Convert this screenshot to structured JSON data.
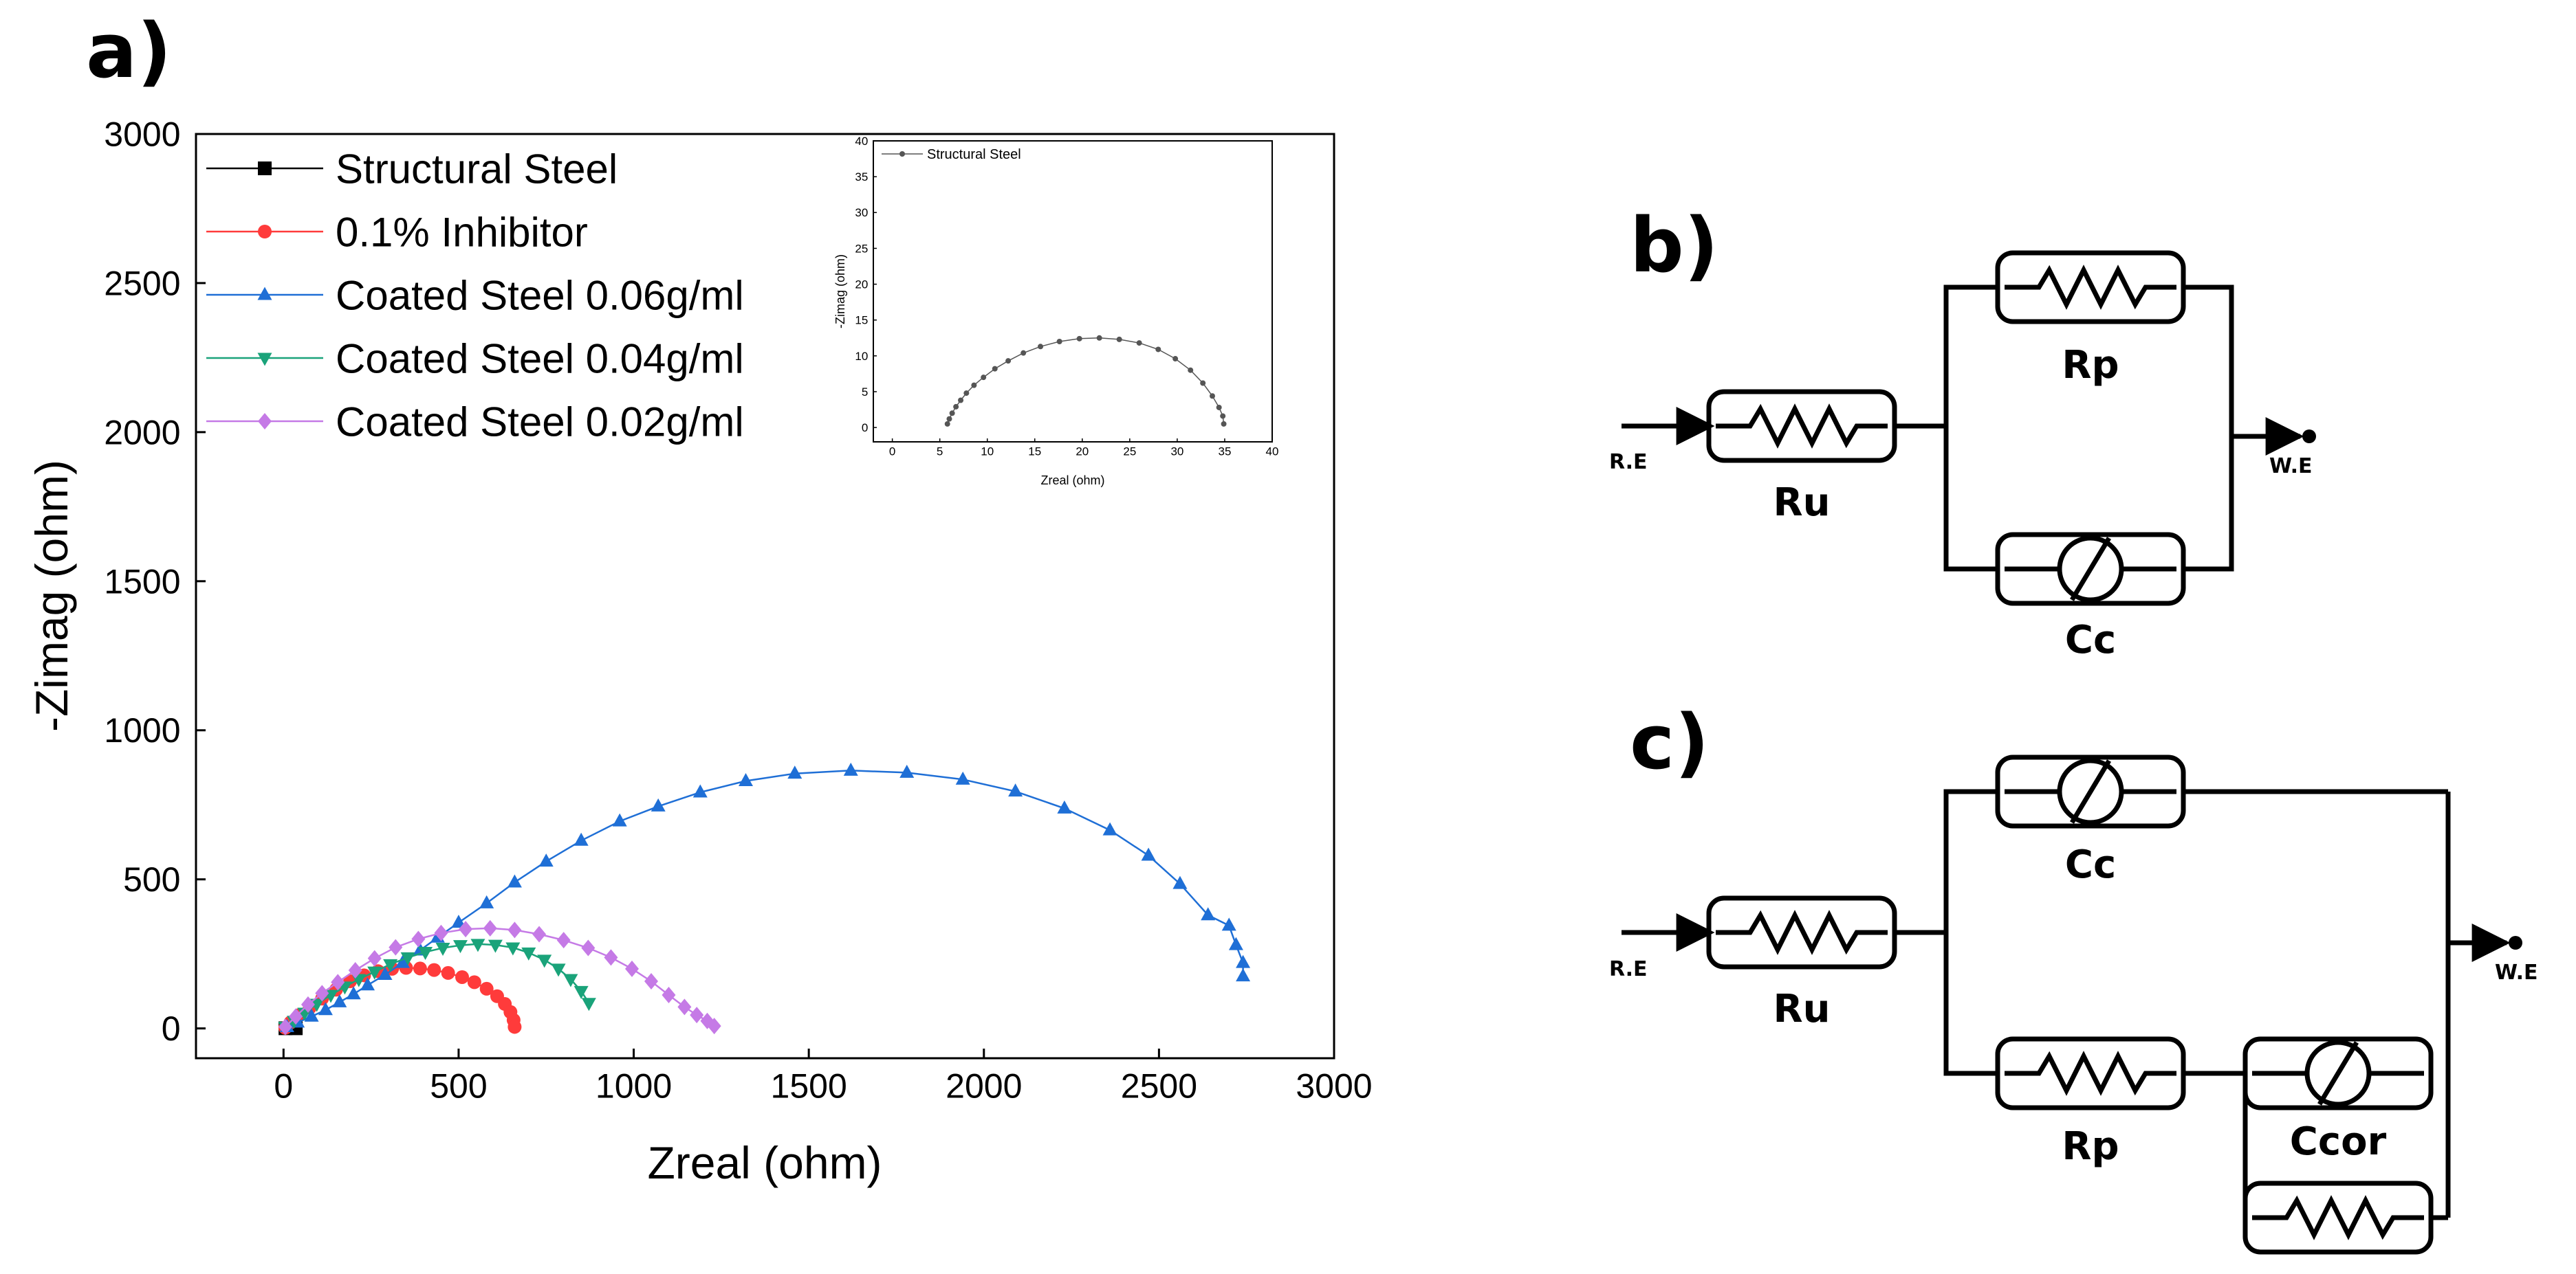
{
  "panels": {
    "a": "a)",
    "b": "b)",
    "c": "c)"
  },
  "chart_data": [
    {
      "type": "scatter",
      "title": "",
      "xlabel": "Zreal (ohm)",
      "ylabel": "-Zimag (ohm)",
      "xlim": [
        -250,
        3000
      ],
      "ylim": [
        -100,
        3000
      ],
      "xticks": [
        0,
        500,
        1000,
        1500,
        2000,
        2500,
        3000
      ],
      "yticks": [
        0,
        500,
        1000,
        1500,
        2000,
        2500,
        3000
      ],
      "legend_position": "top-left",
      "series": [
        {
          "name": "Structural Steel",
          "color": "#000000",
          "marker": "square",
          "points": [
            [
              5.5,
              0.5
            ],
            [
              34.9,
              0.5
            ]
          ]
        },
        {
          "name": "0.1% Inhibitor",
          "color": "#ff3b3b",
          "marker": "circle",
          "points": [
            [
              5,
              2
            ],
            [
              20,
              20
            ],
            [
              45,
              45
            ],
            [
              75,
              70
            ],
            [
              110,
              100
            ],
            [
              150,
              130
            ],
            [
              190,
              158
            ],
            [
              230,
              178
            ],
            [
              270,
              192
            ],
            [
              310,
              200
            ],
            [
              350,
              203
            ],
            [
              390,
              201
            ],
            [
              430,
              196
            ],
            [
              470,
              186
            ],
            [
              510,
              172
            ],
            [
              545,
              155
            ],
            [
              580,
              133
            ],
            [
              610,
              108
            ],
            [
              632,
              82
            ],
            [
              648,
              55
            ],
            [
              657,
              28
            ],
            [
              660,
              5
            ]
          ]
        },
        {
          "name": "Coated Steel 0.06g/ml",
          "color": "#1f6fd6",
          "marker": "triangle-up",
          "points": [
            [
              10,
              5
            ],
            [
              40,
              20
            ],
            [
              80,
              40
            ],
            [
              120,
              62
            ],
            [
              160,
              88
            ],
            [
              200,
              115
            ],
            [
              240,
              145
            ],
            [
              290,
              180
            ],
            [
              340,
              220
            ],
            [
              390,
              262
            ],
            [
              440,
              305
            ],
            [
              500,
              355
            ],
            [
              580,
              420
            ],
            [
              660,
              490
            ],
            [
              750,
              560
            ],
            [
              850,
              630
            ],
            [
              960,
              695
            ],
            [
              1070,
              745
            ],
            [
              1190,
              792
            ],
            [
              1320,
              830
            ],
            [
              1460,
              855
            ],
            [
              1620,
              865
            ],
            [
              1780,
              858
            ],
            [
              1940,
              835
            ],
            [
              2090,
              795
            ],
            [
              2230,
              738
            ],
            [
              2360,
              665
            ],
            [
              2470,
              580
            ],
            [
              2560,
              485
            ],
            [
              2640,
              380
            ],
            [
              2700,
              345
            ],
            [
              2720,
              280
            ],
            [
              2740,
              220
            ],
            [
              2740,
              175
            ]
          ]
        },
        {
          "name": "Coated Steel 0.04g/ml",
          "color": "#1aa37a",
          "marker": "triangle-down",
          "points": [
            [
              5,
              5
            ],
            [
              30,
              25
            ],
            [
              60,
              52
            ],
            [
              95,
              82
            ],
            [
              135,
              112
            ],
            [
              175,
              140
            ],
            [
              215,
              165
            ],
            [
              260,
              190
            ],
            [
              305,
              215
            ],
            [
              355,
              238
            ],
            [
              405,
              256
            ],
            [
              455,
              270
            ],
            [
              505,
              279
            ],
            [
              555,
              283
            ],
            [
              605,
              280
            ],
            [
              655,
              271
            ],
            [
              700,
              254
            ],
            [
              745,
              230
            ],
            [
              785,
              200
            ],
            [
              820,
              165
            ],
            [
              850,
              125
            ],
            [
              872,
              85
            ]
          ]
        },
        {
          "name": "Coated Steel 0.02g/ml",
          "color": "#c57ae6",
          "marker": "diamond",
          "points": [
            [
              5,
              5
            ],
            [
              35,
              40
            ],
            [
              70,
              80
            ],
            [
              110,
              118
            ],
            [
              155,
              155
            ],
            [
              205,
              195
            ],
            [
              260,
              235
            ],
            [
              320,
              272
            ],
            [
              385,
              300
            ],
            [
              450,
              320
            ],
            [
              520,
              333
            ],
            [
              590,
              336
            ],
            [
              660,
              330
            ],
            [
              730,
              316
            ],
            [
              800,
              296
            ],
            [
              870,
              270
            ],
            [
              935,
              238
            ],
            [
              995,
              200
            ],
            [
              1050,
              158
            ],
            [
              1100,
              112
            ],
            [
              1145,
              72
            ],
            [
              1180,
              45
            ],
            [
              1210,
              25
            ],
            [
              1230,
              8
            ]
          ]
        }
      ],
      "legend": [
        "Structural Steel",
        "0.1% Inhibitor",
        "Coated Steel 0.06g/ml",
        "Coated Steel 0.04g/ml",
        "Coated Steel 0.02g/ml"
      ]
    },
    {
      "type": "line",
      "title": "",
      "xlabel": "Zreal (ohm)",
      "ylabel": "-Zimag (ohm)",
      "xlim": [
        -2,
        40
      ],
      "ylim": [
        -2,
        40
      ],
      "xticks": [
        0,
        5,
        10,
        15,
        20,
        25,
        30,
        35,
        40
      ],
      "yticks": [
        0,
        5,
        10,
        15,
        20,
        25,
        30,
        35,
        40
      ],
      "legend_position": "top-left",
      "series": [
        {
          "name": "Structural Steel",
          "color": "#555555",
          "marker": "circle",
          "points": [
            [
              5.8,
              0.5
            ],
            [
              6.0,
              1.2
            ],
            [
              6.3,
              2.0
            ],
            [
              6.7,
              2.9
            ],
            [
              7.2,
              3.8
            ],
            [
              7.8,
              4.8
            ],
            [
              8.6,
              5.9
            ],
            [
              9.6,
              7.0
            ],
            [
              10.8,
              8.2
            ],
            [
              12.2,
              9.3
            ],
            [
              13.8,
              10.4
            ],
            [
              15.6,
              11.3
            ],
            [
              17.6,
              12.0
            ],
            [
              19.7,
              12.4
            ],
            [
              21.8,
              12.5
            ],
            [
              23.9,
              12.3
            ],
            [
              26.0,
              11.8
            ],
            [
              28.0,
              10.9
            ],
            [
              29.8,
              9.6
            ],
            [
              31.4,
              8.0
            ],
            [
              32.7,
              6.2
            ],
            [
              33.7,
              4.4
            ],
            [
              34.4,
              2.8
            ],
            [
              34.8,
              1.6
            ],
            [
              34.9,
              0.5
            ]
          ]
        }
      ],
      "legend": [
        "Structural Steel"
      ]
    }
  ],
  "circuit_b": {
    "ref_electrode": "R.E",
    "work_electrode": "W.E",
    "labels": {
      "ru": "Ru",
      "rp": "Rp",
      "cc": "Cc"
    }
  },
  "circuit_c": {
    "ref_electrode": "R.E",
    "work_electrode": "W.E",
    "labels": {
      "ru": "Ru",
      "rp": "Rp",
      "cc": "Cc",
      "ccor": "Ccor"
    }
  }
}
